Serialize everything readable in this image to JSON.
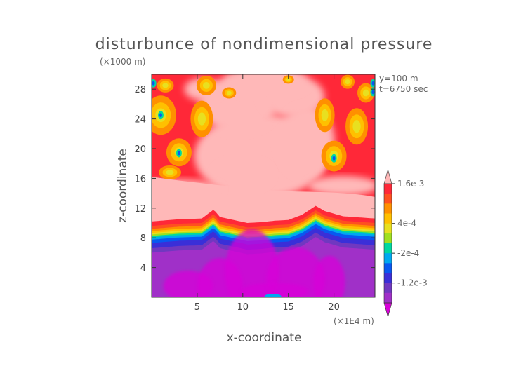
{
  "chart_data": {
    "type": "heatmap",
    "title": "disturbunce of nondimensional pressure",
    "xlabel": "x-coordinate",
    "ylabel": "z-coordinate",
    "x_unit": "(×1E4 m)",
    "y_unit": "(×1000 m)",
    "annotations": [
      "y=100 m",
      "t=6750 sec"
    ],
    "xlim": [
      0,
      24.5
    ],
    "ylim": [
      0,
      30
    ],
    "x_ticks": [
      5,
      10,
      15,
      20
    ],
    "y_ticks": [
      4,
      8,
      12,
      16,
      20,
      24,
      28
    ],
    "colorbar": {
      "labels": [
        "1.6e-3",
        "4e-4",
        "-2e-4",
        "-1.2e-3"
      ],
      "levels": [
        -0.0016,
        -0.0012,
        -0.0008,
        -0.0006,
        -0.0004,
        -0.0002,
        0,
        0.0002,
        0.0004,
        0.0006,
        0.0008,
        0.0012,
        0.0016,
        0.002
      ],
      "colors": [
        "#d800d8",
        "#a030c8",
        "#7038c0",
        "#3a2fd8",
        "#0858f0",
        "#00a8f0",
        "#00d8a0",
        "#a0e020",
        "#e8e020",
        "#ffc000",
        "#ff9000",
        "#ff5020",
        "#ff2838",
        "#ffb8b8"
      ]
    },
    "inflection_heights": [
      [
        0,
        8.2
      ],
      [
        3,
        8.5
      ],
      [
        5.5,
        8.6
      ],
      [
        6.8,
        9.8
      ],
      [
        7.5,
        8.8
      ],
      [
        9,
        8.4
      ],
      [
        10.5,
        8.0
      ],
      [
        12,
        8.1
      ],
      [
        13.5,
        8.3
      ],
      [
        15,
        8.4
      ],
      [
        16.5,
        9.1
      ],
      [
        18,
        10.3
      ],
      [
        19,
        9.6
      ],
      [
        21,
        8.9
      ],
      [
        24.5,
        8.6
      ]
    ]
  }
}
